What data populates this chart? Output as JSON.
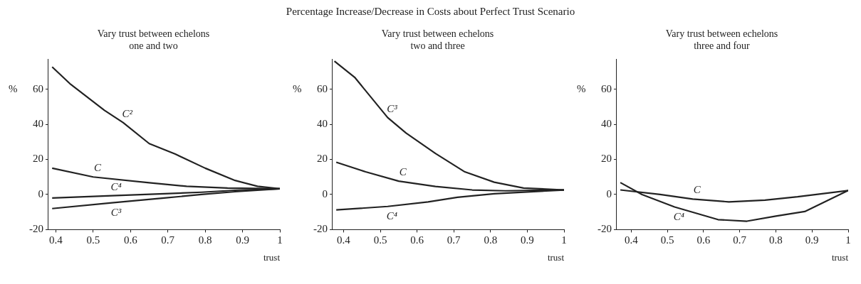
{
  "chart_data": [
    {
      "type": "line",
      "subtitle": "Vary trust between echelons\none and two",
      "xlabel": "trust",
      "ylabel": "%",
      "xlim": [
        0.38,
        1
      ],
      "ylim": [
        -20,
        77
      ],
      "xticks": [
        0.4,
        0.5,
        0.6,
        0.7,
        0.8,
        0.9,
        1
      ],
      "yticks": [
        -20,
        0,
        20,
        40,
        60
      ],
      "grid": false,
      "legend": false,
      "marker": "none",
      "line_style": "solid",
      "series": [
        {
          "name": "C²",
          "color": "#222222",
          "x": [
            0.39,
            0.44,
            0.53,
            0.58,
            0.65,
            0.72,
            0.8,
            0.88,
            0.94,
            1
          ],
          "values": [
            72.7,
            62.7,
            48,
            41,
            29,
            23,
            15,
            8,
            4.7,
            3.3
          ]
        },
        {
          "name": "C",
          "color": "#222222",
          "x": [
            0.39,
            0.5,
            0.65,
            0.75,
            0.86,
            1
          ],
          "values": [
            15,
            10,
            6.7,
            4.7,
            3.7,
            3.3
          ]
        },
        {
          "name": "C⁴",
          "color": "#222222",
          "x": [
            0.39,
            0.55,
            0.69,
            0.79,
            0.88,
            1
          ],
          "values": [
            -2,
            -0.7,
            0.4,
            1.3,
            2.4,
            3.3
          ]
        },
        {
          "name": "C³",
          "color": "#222222",
          "x": [
            0.39,
            0.55,
            0.69,
            0.79,
            0.88,
            1
          ],
          "values": [
            -8,
            -4.7,
            -2,
            0,
            1.6,
            3.3
          ]
        }
      ]
    },
    {
      "type": "line",
      "title": "Percentage Increase/Decrease in Costs about Perfect Trust Scenario",
      "subtitle": "Vary trust between echelons\ntwo and three",
      "xlabel": "trust",
      "ylabel": "%",
      "xlim": [
        0.37,
        1
      ],
      "ylim": [
        -20,
        77
      ],
      "xticks": [
        0.4,
        0.5,
        0.6,
        0.7,
        0.8,
        0.9,
        1
      ],
      "yticks": [
        -20,
        0,
        20,
        40,
        60
      ],
      "grid": false,
      "legend": false,
      "marker": "none",
      "line_style": "solid",
      "series": [
        {
          "name": "C³",
          "color": "#222222",
          "x": [
            0.375,
            0.43,
            0.52,
            0.57,
            0.65,
            0.73,
            0.81,
            0.89,
            1
          ],
          "values": [
            76,
            66.8,
            43.8,
            35,
            23.4,
            12.9,
            7,
            3.7,
            2.6
          ]
        },
        {
          "name": "C",
          "color": "#222222",
          "x": [
            0.38,
            0.46,
            0.55,
            0.65,
            0.75,
            0.84,
            1
          ],
          "values": [
            18.4,
            12.9,
            7.6,
            4.6,
            2.6,
            2.1,
            2.6
          ]
        },
        {
          "name": "C⁴",
          "color": "#222222",
          "x": [
            0.38,
            0.52,
            0.63,
            0.71,
            0.81,
            1
          ],
          "values": [
            -8.8,
            -6.8,
            -4.2,
            -1.6,
            0.4,
            2.6
          ]
        }
      ]
    },
    {
      "type": "line",
      "subtitle": "Vary trust between echelons\nthree and four",
      "xlabel": "trust",
      "ylabel": "%",
      "xlim": [
        0.36,
        1
      ],
      "ylim": [
        -20,
        77
      ],
      "xticks": [
        0.4,
        0.5,
        0.6,
        0.7,
        0.8,
        0.9,
        1
      ],
      "yticks": [
        -20,
        0,
        20,
        40,
        60
      ],
      "grid": false,
      "legend": false,
      "marker": "none",
      "line_style": "solid",
      "series": [
        {
          "name": "C",
          "color": "#222222",
          "x": [
            0.37,
            0.48,
            0.57,
            0.67,
            0.77,
            0.86,
            1
          ],
          "values": [
            2.6,
            0,
            -2.6,
            -4.2,
            -3.2,
            -1.3,
            2.3
          ]
        },
        {
          "name": "C⁴",
          "color": "#222222",
          "x": [
            0.37,
            0.43,
            0.52,
            0.64,
            0.72,
            0.8,
            0.88,
            1
          ],
          "values": [
            6.8,
            0,
            -7.1,
            -14.3,
            -15.2,
            -12.3,
            -9.7,
            2.3
          ]
        }
      ]
    }
  ]
}
